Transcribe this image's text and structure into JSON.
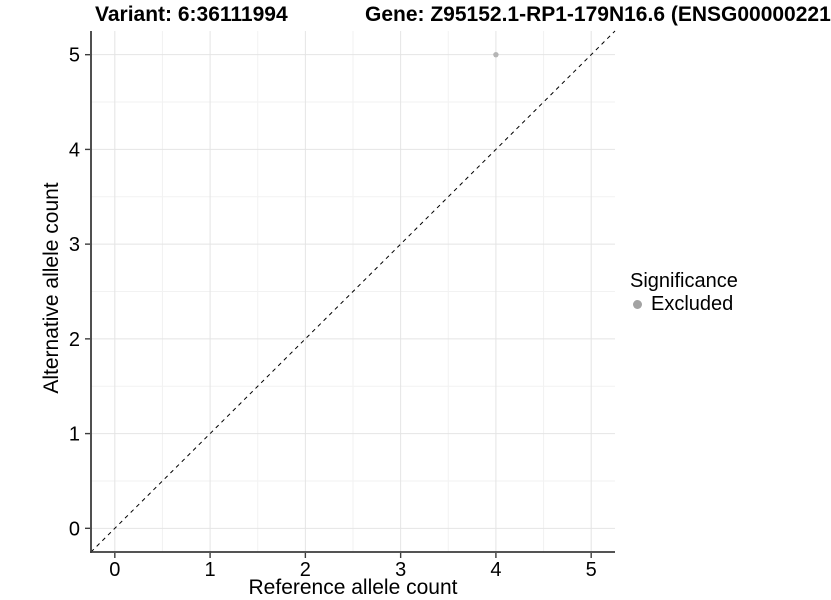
{
  "chart_data": {
    "type": "scatter",
    "titles": {
      "variant": "Variant: 6:36111994",
      "gene": "Gene: Z95152.1-RP1-179N16.6 (ENSG00000221"
    },
    "xlabel": "Reference allele count",
    "ylabel": "Alternative allele count",
    "xticks": [
      0,
      1,
      2,
      3,
      4,
      5
    ],
    "yticks": [
      0,
      1,
      2,
      3,
      4,
      5
    ],
    "xlim": [
      -0.25,
      5.25
    ],
    "ylim": [
      -0.25,
      5.25
    ],
    "grid": {
      "major": true,
      "minor": true
    },
    "points": [
      {
        "x": 4,
        "y": 5,
        "group": "Excluded"
      }
    ],
    "reference_line": {
      "type": "identity",
      "slope": 1,
      "intercept": 0,
      "style": "dashed"
    },
    "legend": {
      "title": "Significance",
      "position": "right",
      "items": [
        {
          "label": "Excluded",
          "color": "#a3a3a3"
        }
      ]
    },
    "colors": {
      "point": "#b5b5b5",
      "grid_major": "#e4e4e4",
      "grid_minor": "#f2f2f2",
      "axis": "#3c3c3c",
      "reference_line": "#000000",
      "tick_text": "#000000"
    }
  }
}
